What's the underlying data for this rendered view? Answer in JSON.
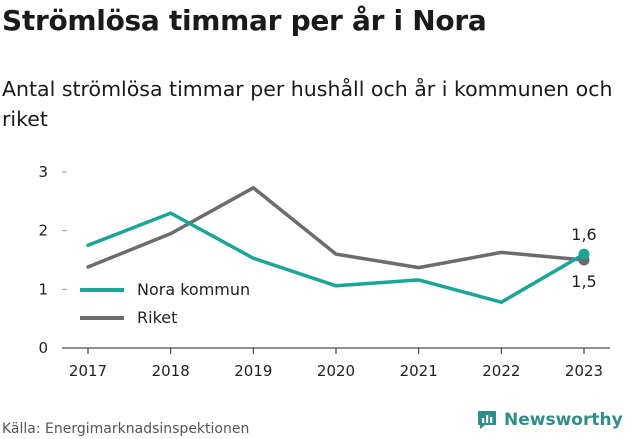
{
  "title": "Strömlösa timmar per år i Nora",
  "subtitle": "Antal strömlösa timmar per hushåll och år i kommunen och riket",
  "source": "Källa: Energimarknadsinspektionen",
  "brand": {
    "name": "Newsworthy",
    "icon": "newsworthy-logo-icon",
    "color": "#2f8f88"
  },
  "chart_data": {
    "type": "line",
    "x": [
      "2017",
      "2018",
      "2019",
      "2020",
      "2021",
      "2022",
      "2023"
    ],
    "ylim": [
      0,
      3
    ],
    "yticks": [
      "0",
      "1",
      "2",
      "3"
    ],
    "grid": false,
    "legend_position": "left",
    "series": [
      {
        "name": "Nora kommun",
        "color": "#1aa597",
        "values": [
          1.75,
          2.3,
          1.53,
          1.06,
          1.16,
          0.78,
          1.6
        ],
        "end_label": "1,6"
      },
      {
        "name": "Riket",
        "color": "#6b6b70",
        "values": [
          1.38,
          1.95,
          2.73,
          1.6,
          1.37,
          1.63,
          1.5
        ],
        "end_label": "1,5"
      }
    ]
  }
}
